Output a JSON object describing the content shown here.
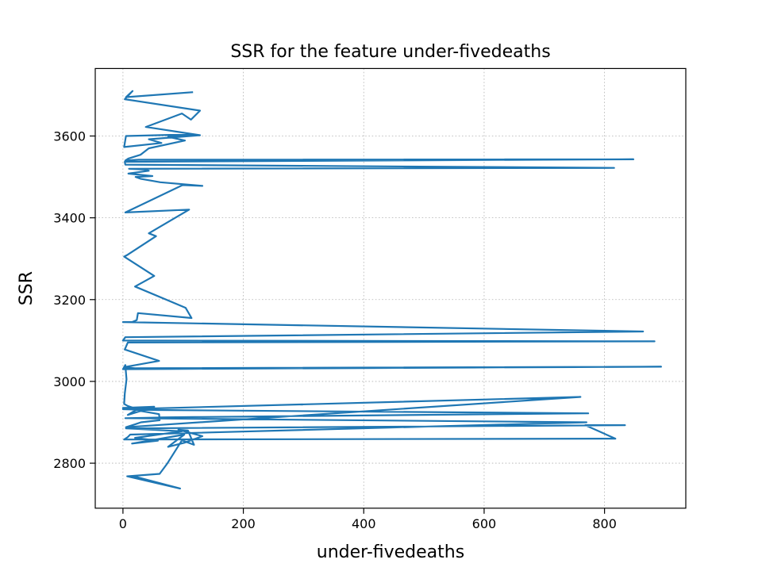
{
  "chart_data": {
    "type": "line",
    "title": "SSR for the feature under-fivedeaths",
    "xlabel": "under-fivedeaths",
    "ylabel": "SSR",
    "xlim": [
      -46,
      935
    ],
    "ylim": [
      2690,
      3765
    ],
    "xticks": [
      0,
      200,
      400,
      600,
      800
    ],
    "yticks": [
      2800,
      3000,
      3200,
      3400,
      3600
    ],
    "grid": true,
    "color": "#1f77b4",
    "series": [
      {
        "x": [
          115,
          5,
          16,
          3,
          128,
          113,
          98,
          38,
          128,
          43,
          64,
          2,
          5,
          116,
          75,
          103,
          43,
          29,
          9,
          4,
          26,
          848,
          3,
          4,
          816,
          10,
          36,
          43,
          9,
          49,
          21,
          30,
          50,
          62,
          132,
          99,
          4,
          110,
          43,
          55,
          8,
          2,
          52,
          20,
          104,
          114,
          25,
          23,
          15,
          0,
          864,
          4,
          0,
          883,
          8,
          3,
          60,
          2,
          20,
          894,
          0,
          4,
          6,
          3,
          2,
          8,
          24,
          8,
          52,
          0,
          60,
          61,
          30,
          20,
          5,
          760,
          0,
          53,
          773,
          60,
          72,
          4,
          770,
          12,
          8,
          2,
          818,
          768,
          834,
          5,
          98,
          20,
          58,
          15,
          102,
          75,
          102,
          132,
          92,
          108,
          118,
          98,
          74,
          61,
          7,
          95,
          18
        ],
        "y": [
          3707,
          3695,
          3710,
          3690,
          3662,
          3640,
          3655,
          3622,
          3602,
          3592,
          3583,
          3573,
          3600,
          3604,
          3598,
          3589,
          3570,
          3554,
          3545,
          3540,
          3542,
          3543,
          3537,
          3530,
          3522,
          3520,
          3518,
          3515,
          3508,
          3502,
          3500,
          3495,
          3490,
          3487,
          3478,
          3480,
          3413,
          3420,
          3362,
          3355,
          3310,
          3305,
          3258,
          3232,
          3180,
          3155,
          3167,
          3150,
          3145,
          3145,
          3122,
          3108,
          3100,
          3098,
          3095,
          3078,
          3050,
          3035,
          3032,
          3036,
          3030,
          3040,
          3005,
          2970,
          2945,
          2940,
          2932,
          2918,
          2938,
          2935,
          2920,
          2905,
          2900,
          2895,
          2888,
          2962,
          2932,
          2930,
          2922,
          2912,
          2912,
          2910,
          2900,
          2870,
          2864,
          2858,
          2860,
          2893,
          2893,
          2885,
          2878,
          2862,
          2855,
          2848,
          2870,
          2840,
          2850,
          2866,
          2882,
          2880,
          2845,
          2856,
          2800,
          2774,
          2768,
          2738,
          2768
        ]
      }
    ]
  }
}
